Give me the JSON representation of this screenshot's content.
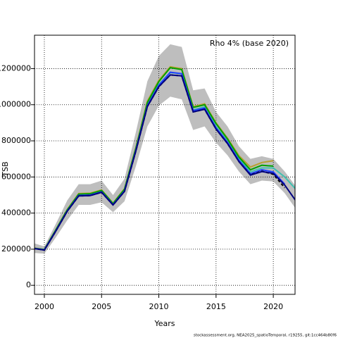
{
  "chart_data": {
    "type": "line",
    "title": "Rho 4% (base 2020)",
    "x_label": "Years",
    "y_label": "TSB",
    "footer": "stockassessment.org, NEA2025_spatioTemporal, r19255, git:1cc464b80f6",
    "x": [
      1999,
      2000,
      2001,
      2002,
      2003,
      2004,
      2005,
      2006,
      2007,
      2008,
      2009,
      2010,
      2011,
      2012,
      2013,
      2014,
      2015,
      2016,
      2017,
      2018,
      2019,
      2020,
      2021,
      2022
    ],
    "band": {
      "color": "#bebebe",
      "upper": [
        235000,
        215000,
        340000,
        470000,
        560000,
        560000,
        580000,
        500000,
        590000,
        850000,
        1130000,
        1270000,
        1335000,
        1320000,
        1080000,
        1090000,
        960000,
        880000,
        770000,
        700000,
        715000,
        700000,
        630000,
        545000
      ],
      "lower": [
        180000,
        175000,
        265000,
        360000,
        445000,
        445000,
        460000,
        405000,
        465000,
        660000,
        880000,
        995000,
        1045000,
        1030000,
        860000,
        880000,
        790000,
        720000,
        630000,
        560000,
        580000,
        575000,
        510000,
        420000
      ]
    },
    "series": [
      {
        "color": "#40c0b0",
        "dashed": false,
        "values": [
          206000,
          197000,
          305000,
          415000,
          500000,
          502000,
          520000,
          450000,
          528000,
          752000,
          1000000,
          1112000,
          1178000,
          1172000,
          972000,
          988000,
          878000,
          798000,
          700000,
          628000,
          650000,
          650000,
          600000,
          530000
        ]
      },
      {
        "color": "#b8a030",
        "dashed": false,
        "values": [
          207000,
          198000,
          308000,
          420000,
          508000,
          510000,
          528000,
          455000,
          535000,
          765000,
          1020000,
          1135000,
          1210000,
          1200000,
          990000,
          1005000,
          900000,
          815000,
          718000,
          655000,
          680000,
          690000,
          null,
          null
        ]
      },
      {
        "color": "#00a000",
        "dashed": false,
        "values": [
          206000,
          198000,
          307000,
          418000,
          505000,
          507000,
          525000,
          453000,
          532000,
          760000,
          1012000,
          1128000,
          1205000,
          1195000,
          985000,
          1000000,
          895000,
          810000,
          710000,
          640000,
          665000,
          660000,
          null,
          null
        ]
      },
      {
        "color": "#2040ff",
        "dashed": false,
        "values": [
          205000,
          196000,
          302000,
          412000,
          498000,
          500000,
          518000,
          447000,
          523000,
          750000,
          995000,
          1108000,
          1180000,
          1172000,
          968000,
          982000,
          872000,
          792000,
          692000,
          618000,
          640000,
          628000,
          560000,
          null
        ]
      },
      {
        "color": "#000000",
        "dashed": true,
        "values": [
          205000,
          195000,
          300000,
          410000,
          495000,
          497000,
          515000,
          445000,
          520000,
          745000,
          990000,
          1100000,
          1165000,
          1160000,
          960000,
          975000,
          865000,
          785000,
          685000,
          612000,
          632000,
          615000,
          540000,
          null
        ]
      },
      {
        "color": "#000080",
        "dashed": false,
        "values": [
          205000,
          195000,
          300000,
          410000,
          495000,
          497000,
          515000,
          445000,
          520000,
          745000,
          990000,
          1100000,
          1165000,
          1160000,
          960000,
          975000,
          865000,
          785000,
          685000,
          610000,
          630000,
          620000,
          555000,
          465000
        ]
      }
    ],
    "xlim": [
      1999.14,
      2021.9
    ],
    "ylim": [
      -50000,
      1385000
    ],
    "xticks": [
      2000,
      2005,
      2010,
      2015,
      2020
    ],
    "yticks": [
      0,
      200000,
      400000,
      600000,
      800000,
      1000000,
      1200000
    ],
    "grid": true
  }
}
